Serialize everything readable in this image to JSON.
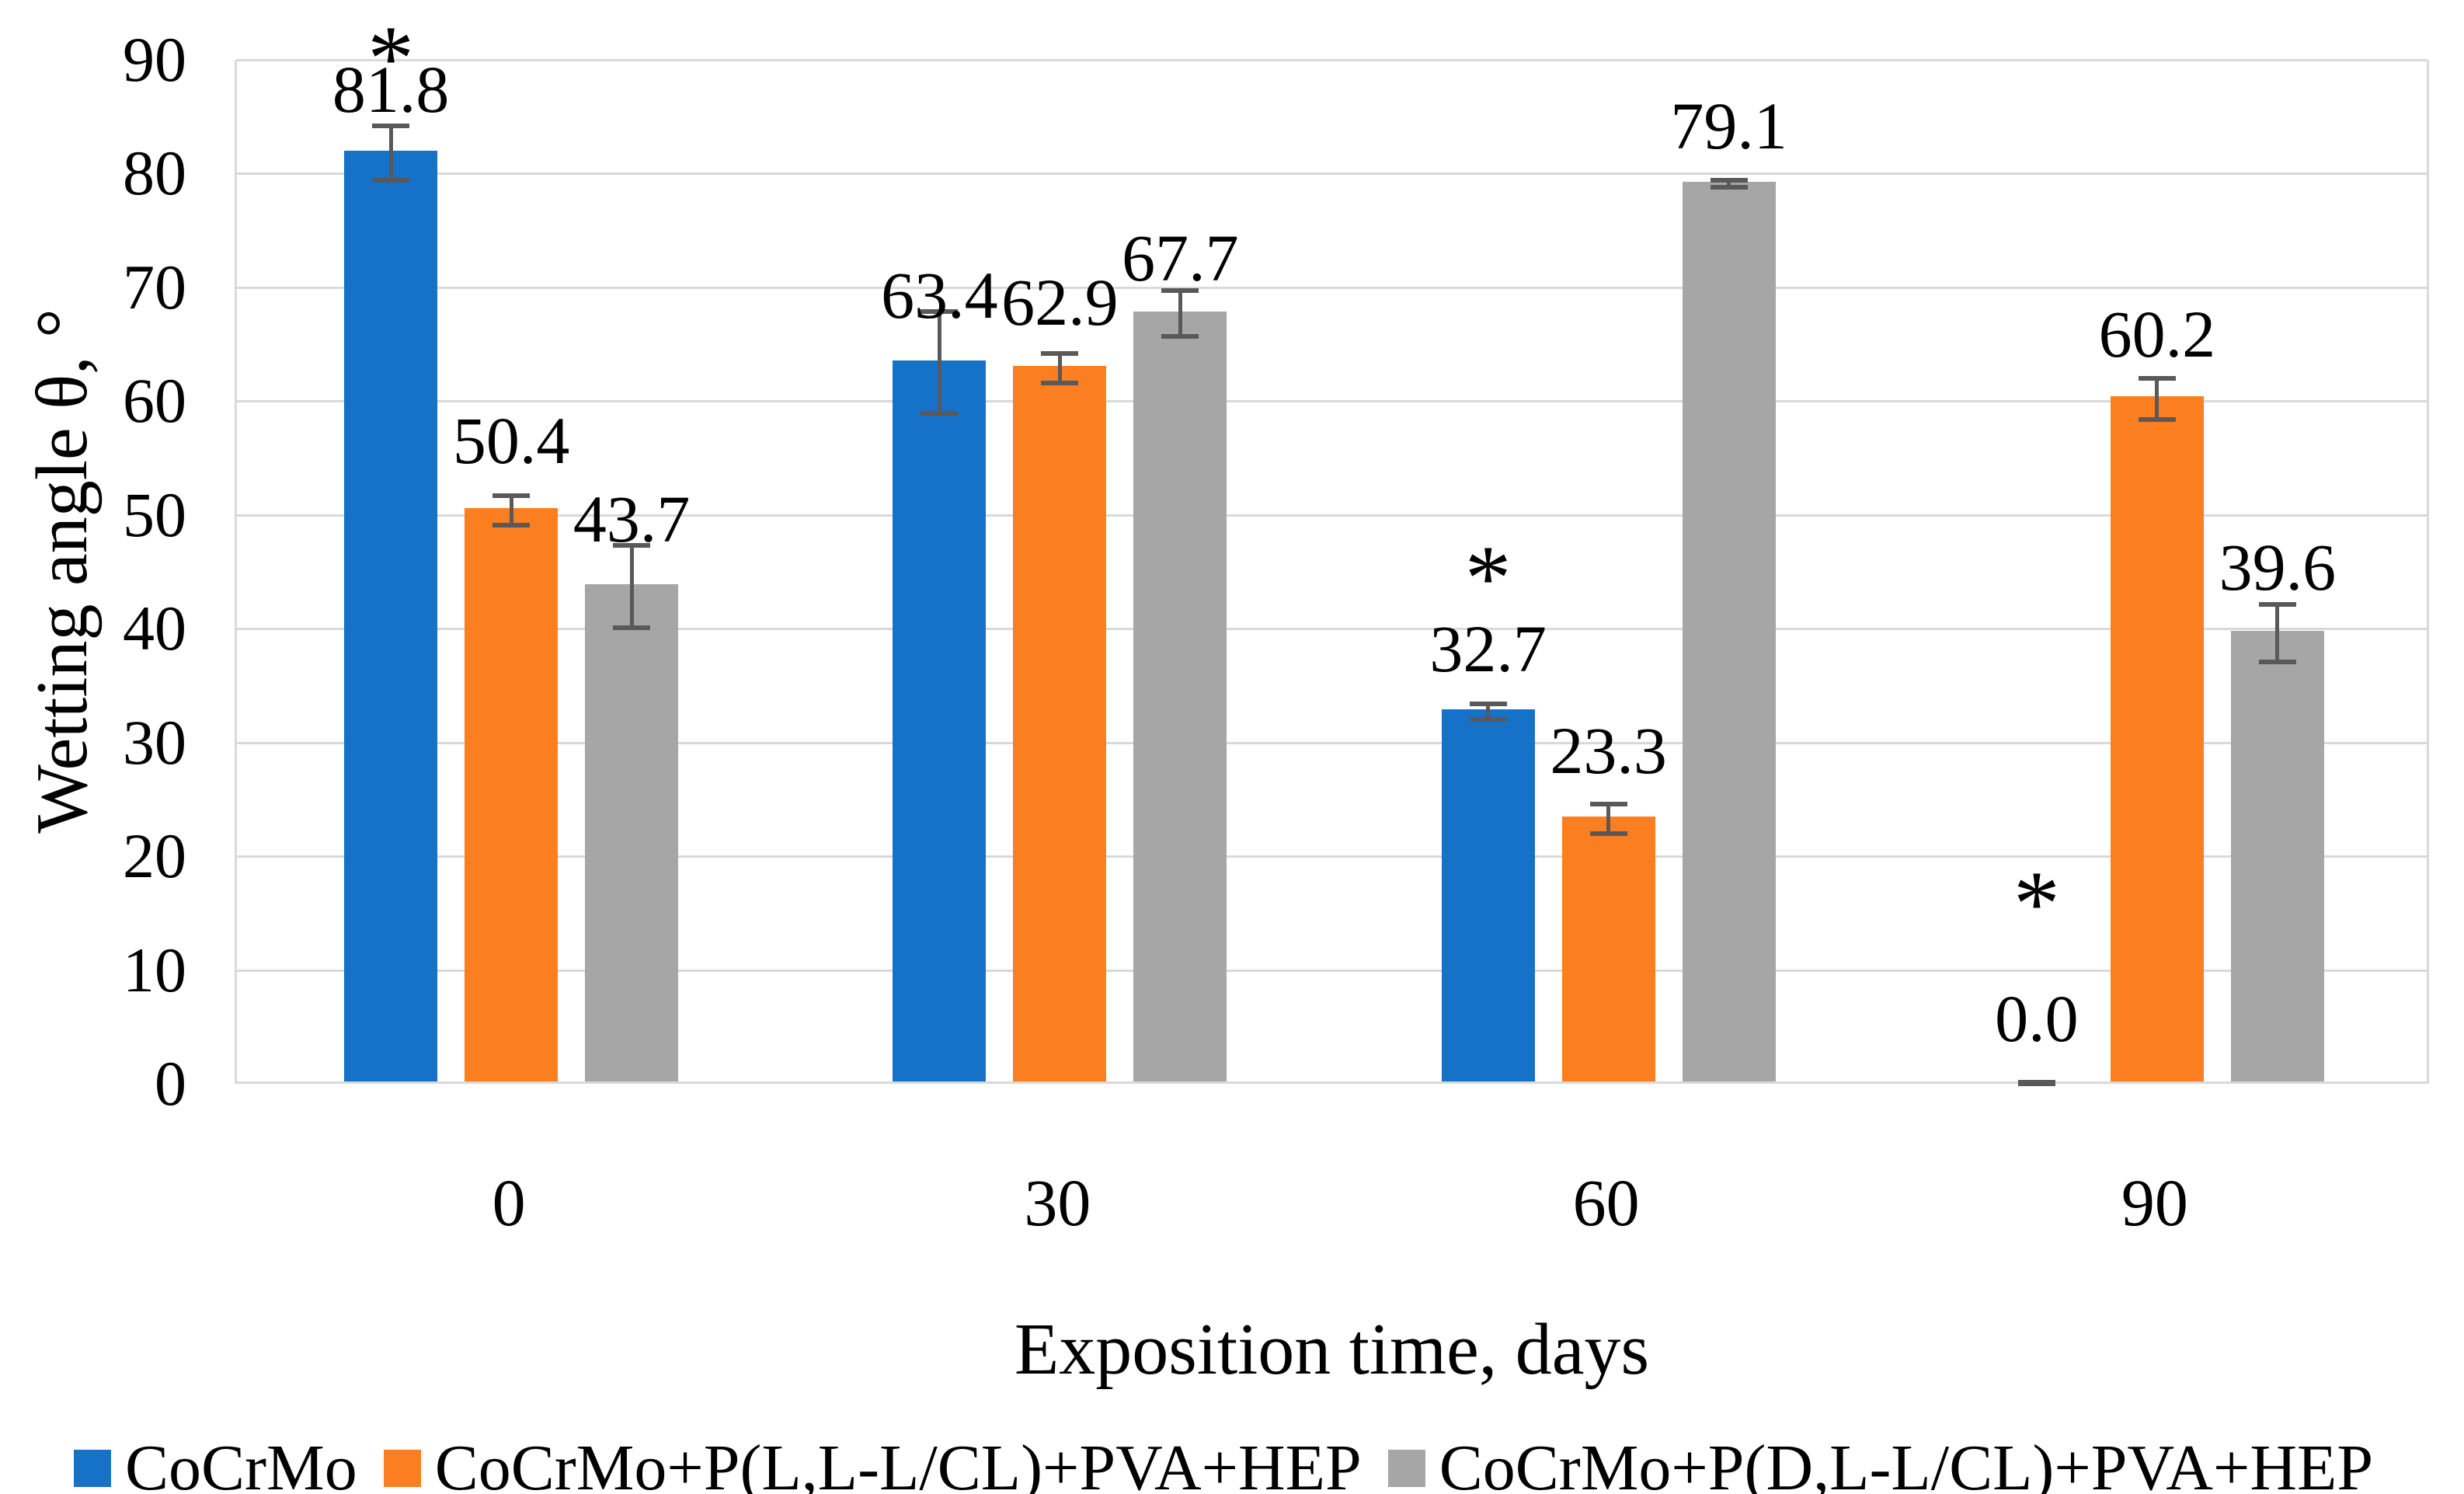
{
  "chart_data": {
    "type": "bar",
    "title": "",
    "xlabel": "Exposition time, days",
    "ylabel": "Wetting angle θ, °",
    "categories": [
      "0",
      "30",
      "60",
      "90"
    ],
    "y_ticks": [
      0,
      10,
      20,
      30,
      40,
      50,
      60,
      70,
      80,
      90
    ],
    "ylim": [
      0,
      90
    ],
    "grid": "horizontal",
    "gridline_color": "#D9D9D9",
    "error_bar_color": "#595959",
    "legend_position": "bottom-left",
    "significance_marker": "*",
    "series": [
      {
        "name": "CoCrMo",
        "color": "#1572C8",
        "values": [
          81.8,
          63.4,
          32.7,
          0.0
        ],
        "labels": [
          "81.8",
          "63.4",
          "32.7",
          "0.0"
        ],
        "errors": [
          2.4,
          4.5,
          0.7,
          0.15
        ],
        "label_v": [
          85.5,
          67.4,
          36.3,
          3.8
        ],
        "star": [
          true,
          false,
          true,
          true
        ],
        "star_v": [
          91.9,
          null,
          46.2,
          17.6
        ]
      },
      {
        "name": "CoCrMo+P(L,L-L/CL)+PVA+HEP",
        "color": "#FB7E21",
        "values": [
          50.4,
          62.9,
          23.3,
          60.2
        ],
        "labels": [
          "50.4",
          "62.9",
          "23.3",
          "60.2"
        ],
        "errors": [
          1.3,
          1.3,
          1.3,
          1.8
        ],
        "label_v": [
          54.6,
          66.8,
          27.4,
          64.0
        ],
        "star": [
          false,
          false,
          false,
          false
        ],
        "star_v": [
          null,
          null,
          null,
          null
        ]
      },
      {
        "name": "CoCrMo+P(D,L-L/CL)+PVA+HEP",
        "color": "#A6A6A6",
        "values": [
          43.7,
          67.7,
          79.1,
          39.6
        ],
        "labels": [
          "43.7",
          "67.7",
          "79.1",
          "39.6"
        ],
        "errors": [
          3.6,
          2.0,
          0.3,
          2.55
        ],
        "label_v": [
          47.7,
          70.7,
          82.3,
          43.5
        ],
        "star": [
          false,
          false,
          false,
          false
        ],
        "star_v": [
          null,
          null,
          null,
          null
        ]
      }
    ]
  }
}
